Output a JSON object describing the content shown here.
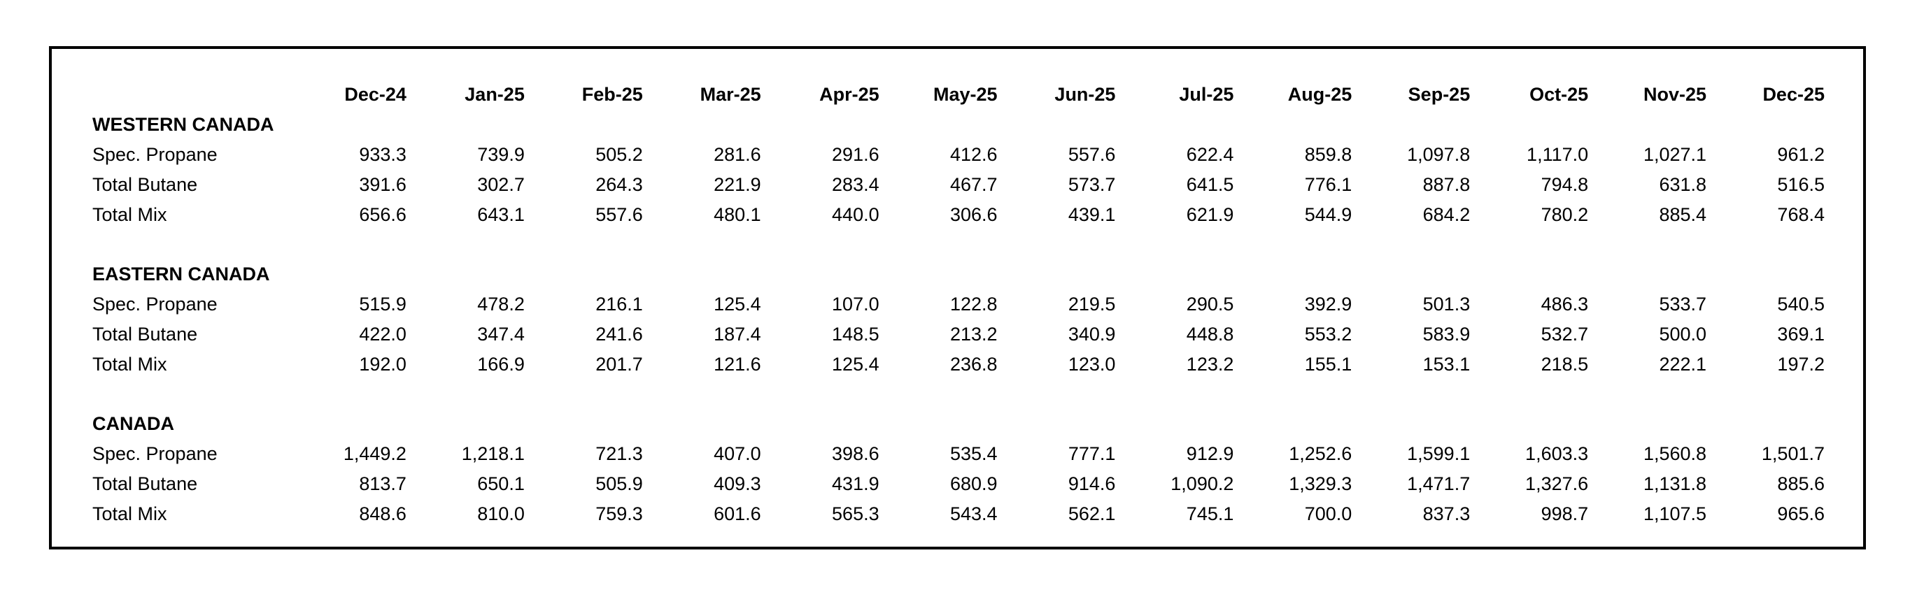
{
  "colors": {
    "background": "#ffffff",
    "border": "#000000",
    "text": "#000000"
  },
  "chart_data": {
    "type": "table",
    "columns": [
      "Dec-24",
      "Jan-25",
      "Feb-25",
      "Mar-25",
      "Apr-25",
      "May-25",
      "Jun-25",
      "Jul-25",
      "Aug-25",
      "Sep-25",
      "Oct-25",
      "Nov-25",
      "Dec-25"
    ],
    "sections": [
      {
        "title": "WESTERN CANADA",
        "rows": [
          {
            "label": "Spec. Propane",
            "values": [
              "933.3",
              "739.9",
              "505.2",
              "281.6",
              "291.6",
              "412.6",
              "557.6",
              "622.4",
              "859.8",
              "1,097.8",
              "1,117.0",
              "1,027.1",
              "961.2"
            ]
          },
          {
            "label": "Total Butane",
            "values": [
              "391.6",
              "302.7",
              "264.3",
              "221.9",
              "283.4",
              "467.7",
              "573.7",
              "641.5",
              "776.1",
              "887.8",
              "794.8",
              "631.8",
              "516.5"
            ]
          },
          {
            "label": "Total Mix",
            "values": [
              "656.6",
              "643.1",
              "557.6",
              "480.1",
              "440.0",
              "306.6",
              "439.1",
              "621.9",
              "544.9",
              "684.2",
              "780.2",
              "885.4",
              "768.4"
            ]
          }
        ]
      },
      {
        "title": "EASTERN CANADA",
        "rows": [
          {
            "label": "Spec. Propane",
            "values": [
              "515.9",
              "478.2",
              "216.1",
              "125.4",
              "107.0",
              "122.8",
              "219.5",
              "290.5",
              "392.9",
              "501.3",
              "486.3",
              "533.7",
              "540.5"
            ]
          },
          {
            "label": "Total Butane",
            "values": [
              "422.0",
              "347.4",
              "241.6",
              "187.4",
              "148.5",
              "213.2",
              "340.9",
              "448.8",
              "553.2",
              "583.9",
              "532.7",
              "500.0",
              "369.1"
            ]
          },
          {
            "label": "Total Mix",
            "values": [
              "192.0",
              "166.9",
              "201.7",
              "121.6",
              "125.4",
              "236.8",
              "123.0",
              "123.2",
              "155.1",
              "153.1",
              "218.5",
              "222.1",
              "197.2"
            ]
          }
        ]
      },
      {
        "title": "CANADA",
        "rows": [
          {
            "label": "Spec. Propane",
            "values": [
              "1,449.2",
              "1,218.1",
              "721.3",
              "407.0",
              "398.6",
              "535.4",
              "777.1",
              "912.9",
              "1,252.6",
              "1,599.1",
              "1,603.3",
              "1,560.8",
              "1,501.7"
            ]
          },
          {
            "label": "Total Butane",
            "values": [
              "813.7",
              "650.1",
              "505.9",
              "409.3",
              "431.9",
              "680.9",
              "914.6",
              "1,090.2",
              "1,329.3",
              "1,471.7",
              "1,327.6",
              "1,131.8",
              "885.6"
            ]
          },
          {
            "label": "Total Mix",
            "values": [
              "848.6",
              "810.0",
              "759.3",
              "601.6",
              "565.3",
              "543.4",
              "562.1",
              "745.1",
              "700.0",
              "837.3",
              "998.7",
              "1,107.5",
              "965.6"
            ]
          }
        ]
      }
    ]
  }
}
